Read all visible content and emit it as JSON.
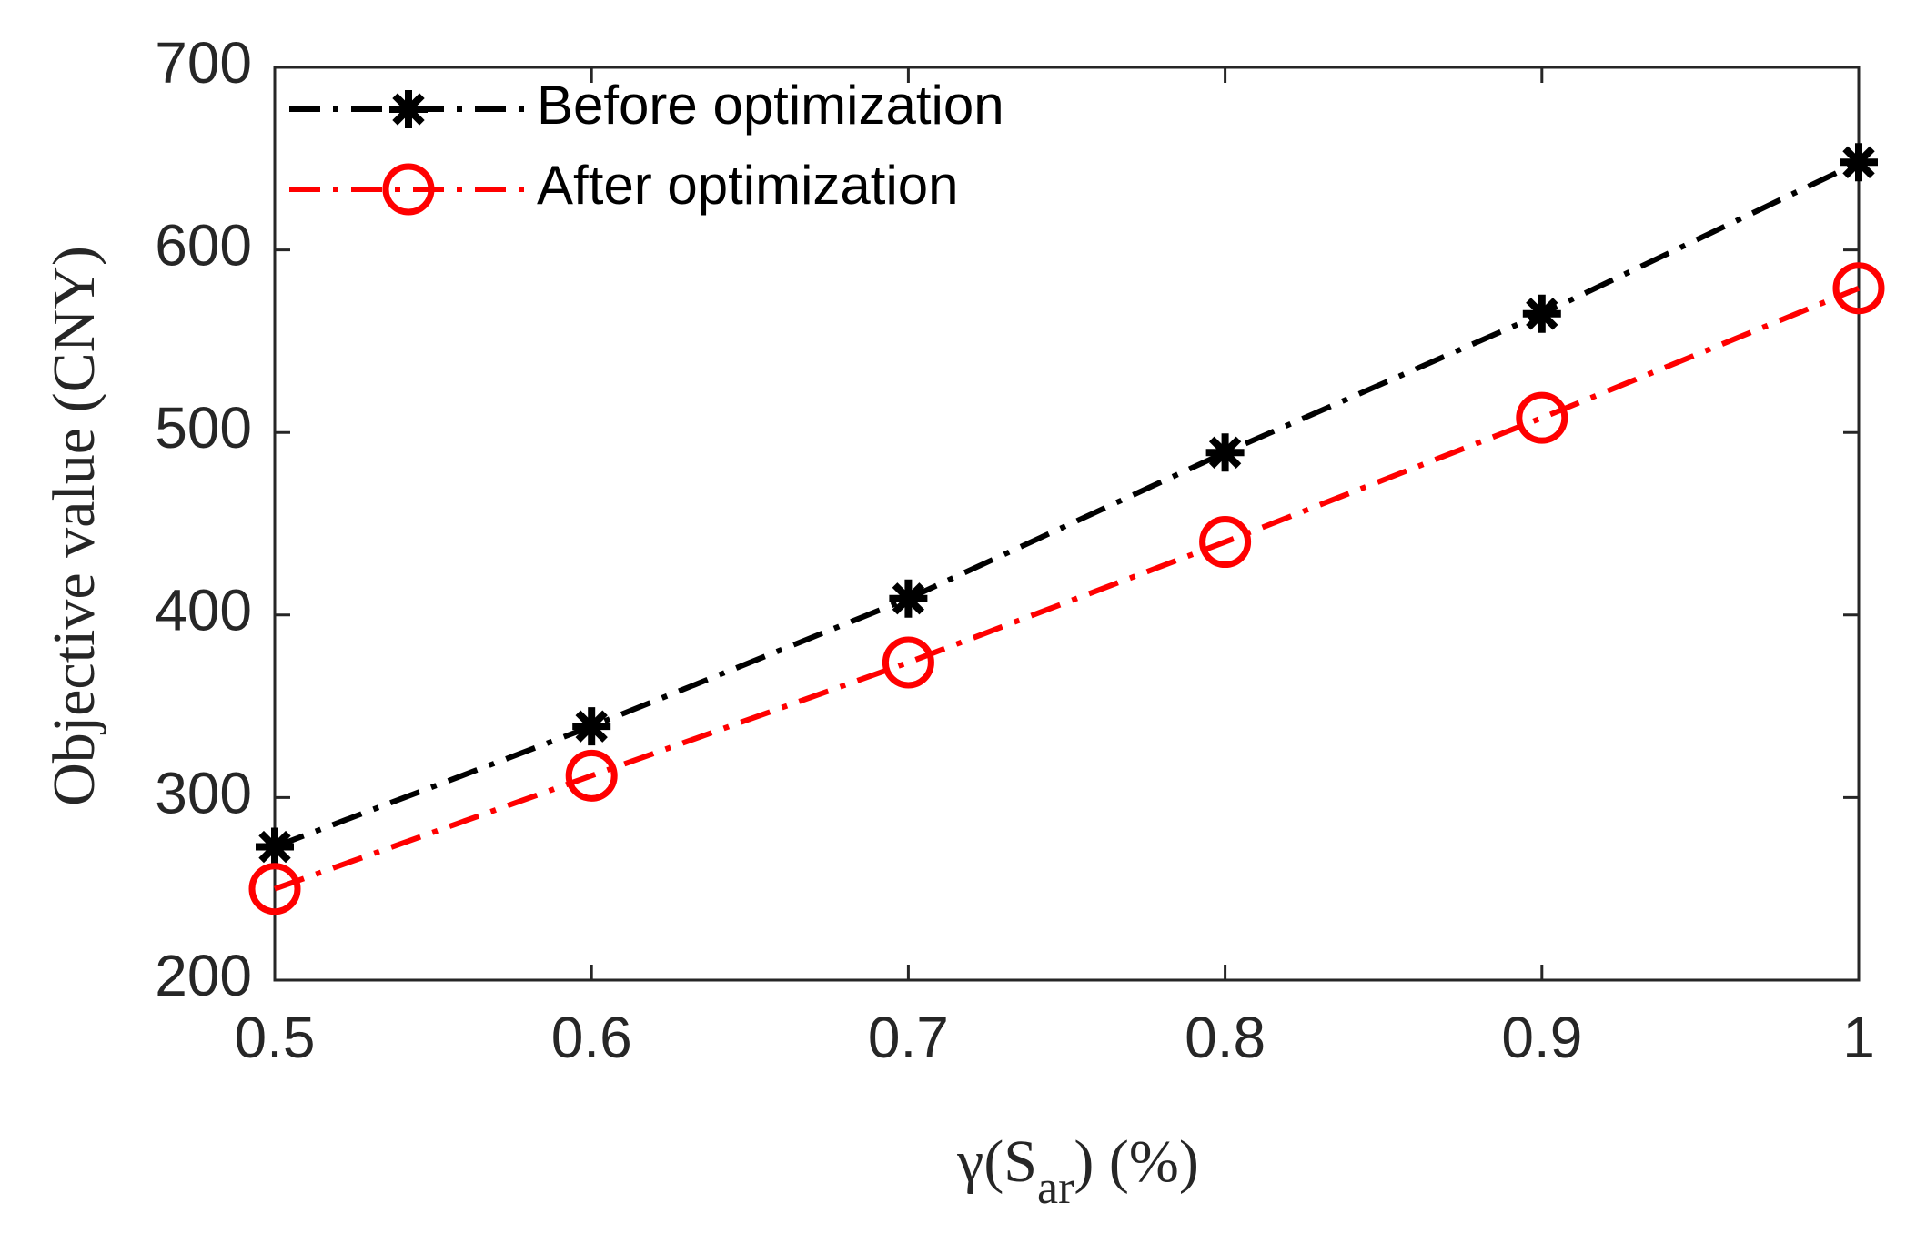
{
  "chart_data": {
    "type": "line",
    "title": "",
    "xlabel": "γ(S_ar) (%)",
    "xlabel_parts": {
      "symbol": "γ(S",
      "subscript": "ar",
      "suffix": ") (%)"
    },
    "ylabel": "Objective value (CNY)",
    "x": [
      0.5,
      0.6,
      0.7,
      0.8,
      0.9,
      1.0
    ],
    "xlim": [
      0.5,
      1.0
    ],
    "ylim": [
      200,
      700
    ],
    "xticks": [
      0.5,
      0.6,
      0.7,
      0.8,
      0.9,
      1.0
    ],
    "xtick_labels": [
      "0.5",
      "0.6",
      "0.7",
      "0.8",
      "0.9",
      "1"
    ],
    "yticks": [
      200,
      300,
      400,
      500,
      600,
      700
    ],
    "ytick_labels": [
      "200",
      "300",
      "400",
      "500",
      "600",
      "700"
    ],
    "grid": false,
    "legend_position": "top-left",
    "series": [
      {
        "name": "Before optimization",
        "values": [
          273,
          339,
          409,
          489,
          565,
          648
        ],
        "color": "#000000",
        "marker": "asterisk",
        "line_style": "dash-dot"
      },
      {
        "name": "After optimization",
        "values": [
          250,
          312,
          374,
          440,
          508,
          579
        ],
        "color": "#ff0000",
        "marker": "circle",
        "line_style": "dash-dot"
      }
    ]
  }
}
